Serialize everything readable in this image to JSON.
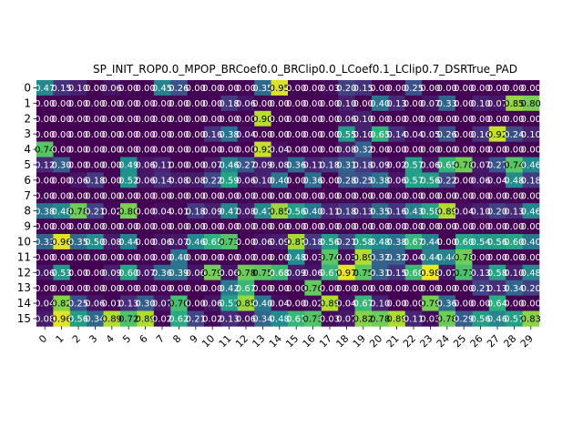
{
  "chart_data": {
    "type": "heatmap",
    "title": "SP_INIT_ROP0.0_MPOP_BRCoef0.0_BRClip0.0_LCoef0.1_LClip0.7_DSRTrue_PAD",
    "xlabel": "",
    "ylabel": "",
    "x_tick_labels": [
      "0",
      "1",
      "2",
      "3",
      "4",
      "5",
      "6",
      "7",
      "8",
      "9",
      "10",
      "11",
      "12",
      "13",
      "14",
      "15",
      "16",
      "17",
      "18",
      "19",
      "20",
      "21",
      "22",
      "23",
      "24",
      "25",
      "26",
      "27",
      "28",
      "29"
    ],
    "y_tick_labels": [
      "0",
      "1",
      "2",
      "3",
      "4",
      "5",
      "6",
      "7",
      "8",
      "9",
      "10",
      "11",
      "12",
      "13",
      "14",
      "15"
    ],
    "colormap": "viridis",
    "vmin": 0.0,
    "vmax": 1.0,
    "values": [
      [
        0.47,
        0.15,
        0.1,
        0.0,
        0.06,
        0.0,
        0.0,
        0.45,
        0.26,
        0.0,
        0.0,
        0.0,
        0.0,
        0.35,
        0.95,
        0.0,
        0.0,
        0.03,
        0.2,
        0.15,
        0.0,
        0.0,
        0.25,
        0.0,
        0.0,
        0.0,
        0.0,
        0.0,
        0.0,
        0.0
      ],
      [
        0.0,
        0.0,
        0.0,
        0.0,
        0.0,
        0.0,
        0.0,
        0.0,
        0.0,
        0.0,
        0.0,
        0.18,
        0.06,
        0.0,
        0.0,
        0.0,
        0.0,
        0.0,
        0.1,
        0.0,
        0.4,
        0.13,
        0.0,
        0.07,
        0.33,
        0.0,
        0.1,
        0.07,
        0.85,
        0.8
      ],
      [
        0.0,
        0.0,
        0.0,
        0.0,
        0.0,
        0.0,
        0.0,
        0.0,
        0.0,
        0.0,
        0.0,
        0.0,
        0.0,
        0.9,
        0.0,
        0.0,
        0.0,
        0.0,
        0.06,
        0.1,
        0.0,
        0.0,
        0.0,
        0.0,
        0.0,
        0.0,
        0.0,
        0.0,
        0.0,
        0.0
      ],
      [
        0.0,
        0.0,
        0.0,
        0.0,
        0.0,
        0.0,
        0.0,
        0.0,
        0.0,
        0.0,
        0.16,
        0.38,
        0.04,
        0.0,
        0.0,
        0.0,
        0.0,
        0.0,
        0.55,
        0.1,
        0.65,
        0.14,
        0.04,
        0.05,
        0.26,
        0.0,
        0.16,
        0.92,
        0.24,
        0.1
      ],
      [
        0.74,
        0.0,
        0.0,
        0.0,
        0.0,
        0.0,
        0.0,
        0.0,
        0.0,
        0.0,
        0.0,
        0.0,
        0.0,
        0.92,
        0.04,
        0.0,
        0.0,
        0.0,
        0.08,
        0.32,
        0.0,
        0.0,
        0.0,
        0.0,
        0.0,
        0.0,
        0.0,
        0.0,
        0.0,
        0.0
      ],
      [
        0.12,
        0.3,
        0.0,
        0.0,
        0.0,
        0.49,
        0.06,
        0.11,
        0.0,
        0.0,
        0.07,
        0.46,
        0.27,
        0.09,
        0.08,
        0.36,
        0.11,
        0.18,
        0.31,
        0.18,
        0.09,
        0.02,
        0.57,
        0.06,
        0.65,
        0.78,
        0.07,
        0.27,
        0.74,
        0.46
      ],
      [
        0.0,
        0.0,
        0.06,
        0.18,
        0.0,
        0.52,
        0.06,
        0.14,
        0.08,
        0.08,
        0.22,
        0.59,
        0.06,
        0.1,
        0.4,
        0.0,
        0.36,
        0.0,
        0.28,
        0.25,
        0.38,
        0.06,
        0.57,
        0.56,
        0.22,
        0.0,
        0.06,
        0.04,
        0.48,
        0.18
      ],
      [
        0.0,
        0.0,
        0.0,
        0.0,
        0.0,
        0.0,
        0.0,
        0.0,
        0.0,
        0.0,
        0.0,
        0.0,
        0.0,
        0.0,
        0.0,
        0.0,
        0.0,
        0.0,
        0.0,
        0.0,
        0.0,
        0.0,
        0.0,
        0.0,
        0.0,
        0.0,
        0.0,
        0.0,
        0.0,
        0.0
      ],
      [
        0.38,
        0.48,
        0.78,
        0.21,
        0.02,
        0.8,
        0.0,
        0.04,
        0.01,
        0.18,
        0.09,
        0.47,
        0.08,
        0.47,
        0.85,
        0.56,
        0.4,
        0.11,
        0.18,
        0.13,
        0.35,
        0.16,
        0.43,
        0.58,
        0.89,
        0.04,
        0.1,
        0.2,
        0.13,
        0.46
      ],
      [
        0.0,
        0.0,
        0.0,
        0.0,
        0.0,
        0.0,
        0.0,
        0.0,
        0.0,
        0.0,
        0.0,
        0.0,
        0.0,
        0.0,
        0.0,
        0.0,
        0.0,
        0.0,
        0.0,
        0.0,
        0.0,
        0.0,
        0.0,
        0.0,
        0.0,
        0.0,
        0.0,
        0.0,
        0.0,
        0.0
      ],
      [
        0.33,
        0.96,
        0.35,
        0.5,
        0.08,
        0.44,
        0.0,
        0.06,
        0.07,
        0.46,
        0.65,
        0.73,
        0.0,
        0.06,
        0.09,
        0.87,
        0.18,
        0.56,
        0.21,
        0.58,
        0.48,
        0.38,
        0.67,
        0.44,
        0.0,
        0.6,
        0.54,
        0.56,
        0.6,
        0.4
      ],
      [
        0.0,
        0.0,
        0.0,
        0.0,
        0.0,
        0.0,
        0.0,
        0.0,
        0.4,
        0.0,
        0.0,
        0.0,
        0.0,
        0.0,
        0.0,
        0.48,
        0.03,
        0.74,
        0.03,
        0.89,
        0.32,
        0.32,
        0.04,
        0.44,
        0.44,
        0.78,
        0.0,
        0.0,
        0.0,
        0.0
      ],
      [
        0.06,
        0.53,
        0.0,
        0.0,
        0.09,
        0.6,
        0.07,
        0.36,
        0.39,
        0.06,
        0.79,
        0.06,
        0.78,
        0.75,
        0.68,
        0.09,
        0.06,
        0.67,
        0.97,
        0.75,
        0.31,
        0.15,
        0.68,
        0.98,
        0.07,
        0.71,
        0.13,
        0.58,
        0.1,
        0.48
      ],
      [
        0.0,
        0.0,
        0.0,
        0.0,
        0.0,
        0.0,
        0.0,
        0.0,
        0.0,
        0.0,
        0.0,
        0.42,
        0.67,
        0.0,
        0.0,
        0.0,
        0.76,
        0.0,
        0.0,
        0.0,
        0.0,
        0.0,
        0.0,
        0.0,
        0.0,
        0.0,
        0.21,
        0.13,
        0.34,
        0.2
      ],
      [
        0.04,
        0.82,
        0.25,
        0.06,
        0.01,
        0.13,
        0.3,
        0.07,
        0.7,
        0.0,
        0.06,
        0.57,
        0.85,
        0.4,
        0.04,
        0.0,
        0.02,
        0.89,
        0.04,
        0.67,
        0.1,
        0.0,
        0.0,
        0.79,
        0.36,
        0.0,
        0.0,
        0.64,
        0.0,
        0.0
      ],
      [
        0.08,
        0.96,
        0.56,
        0.34,
        0.89,
        0.72,
        0.89,
        0.02,
        0.62,
        0.21,
        0.02,
        0.13,
        0.06,
        0.34,
        0.48,
        0.67,
        0.73,
        0.03,
        0.07,
        0.82,
        0.78,
        0.89,
        0.11,
        0.03,
        0.78,
        0.29,
        0.56,
        0.46,
        0.57,
        0.83
      ]
    ]
  }
}
